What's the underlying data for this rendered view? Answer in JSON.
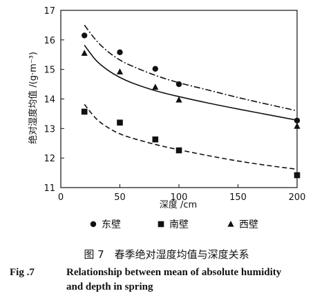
{
  "chart_data": {
    "type": "scatter",
    "xlabel": "深度 /cm",
    "ylabel": "绝对湿度均值 /(g·m⁻³)",
    "xlim": [
      0,
      200
    ],
    "ylim": [
      11,
      17
    ],
    "xticks": [
      0,
      50,
      100,
      150,
      200
    ],
    "yticks": [
      11,
      12,
      13,
      14,
      15,
      16,
      17
    ],
    "grid": false,
    "legend_position": "bottom",
    "series": [
      {
        "name": "东壁",
        "marker": "circle",
        "line_style": "dashdot",
        "x": [
          20,
          50,
          80,
          100,
          200
        ],
        "values": [
          16.15,
          15.58,
          15.02,
          14.5,
          13.27
        ],
        "fit": {
          "x": [
            20,
            30,
            40,
            50,
            60,
            80,
            100,
            125,
            150,
            175,
            200
          ],
          "y": [
            16.5,
            15.98,
            15.6,
            15.32,
            15.12,
            14.8,
            14.55,
            14.3,
            14.05,
            13.82,
            13.6
          ]
        }
      },
      {
        "name": "南壁",
        "marker": "square",
        "line_style": "dashed",
        "x": [
          20,
          50,
          80,
          100,
          200
        ],
        "values": [
          13.57,
          13.2,
          12.63,
          12.26,
          11.42
        ],
        "fit": {
          "x": [
            20,
            30,
            40,
            50,
            60,
            80,
            100,
            125,
            150,
            175,
            200
          ],
          "y": [
            13.82,
            13.33,
            13.03,
            12.82,
            12.68,
            12.46,
            12.28,
            12.08,
            11.9,
            11.75,
            11.62
          ]
        }
      },
      {
        "name": "西壁",
        "marker": "triangle",
        "line_style": "solid",
        "x": [
          20,
          50,
          80,
          100,
          200
        ],
        "values": [
          15.55,
          14.92,
          14.4,
          13.97,
          13.08
        ],
        "fit": {
          "x": [
            20,
            30,
            40,
            50,
            60,
            80,
            100,
            125,
            150,
            175,
            200
          ],
          "y": [
            15.82,
            15.3,
            14.97,
            14.73,
            14.55,
            14.28,
            14.08,
            13.86,
            13.66,
            13.47,
            13.28
          ]
        }
      }
    ]
  },
  "caption": {
    "cn": "图 7　春季绝对湿度均值与深度关系",
    "en_fig": "Fig .7",
    "en_line1": "Relationship between mean of absolute humidity",
    "en_line2": "and depth in spring"
  }
}
